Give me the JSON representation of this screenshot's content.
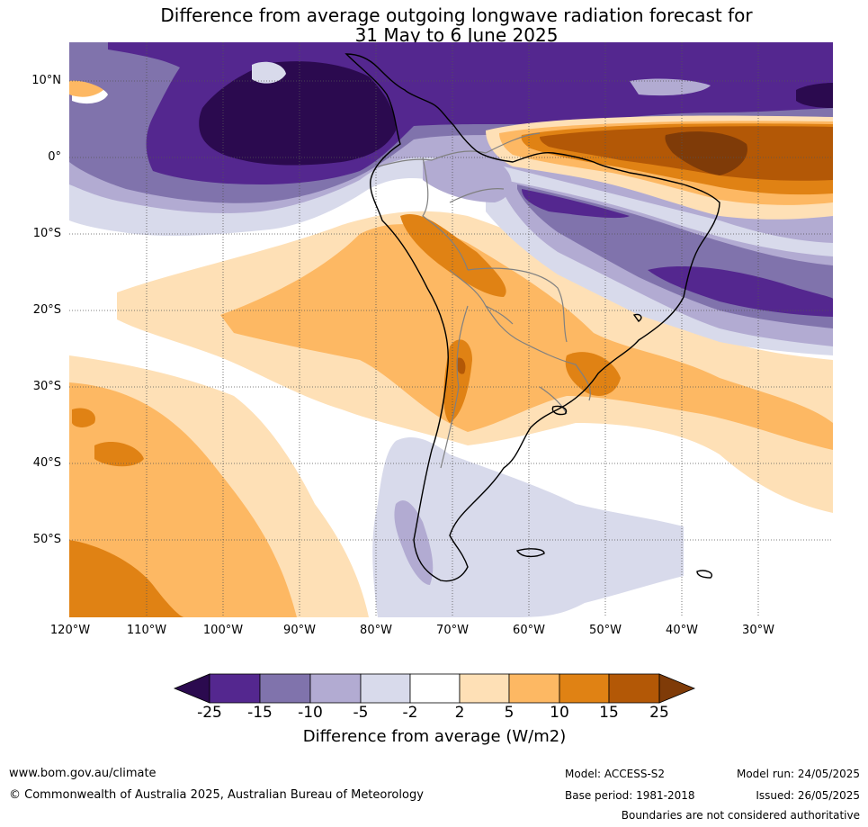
{
  "title_line1": "Difference from average outgoing longwave radiation forecast for",
  "title_line2": "31 May to 6 June 2025",
  "lat_labels": [
    "10°N",
    "0°",
    "10°S",
    "20°S",
    "30°S",
    "40°S",
    "50°S"
  ],
  "lon_labels": [
    "120°W",
    "110°W",
    "100°W",
    "90°W",
    "80°W",
    "70°W",
    "60°W",
    "50°W",
    "40°W",
    "30°W"
  ],
  "colorbar": {
    "title": "Difference from average (W/m2)",
    "ticks": [
      "-25",
      "-15",
      "-10",
      "-5",
      "-2",
      "2",
      "5",
      "10",
      "15",
      "25"
    ],
    "colors": [
      "#2b0a4f",
      "#54278f",
      "#8073ac",
      "#b2abd2",
      "#d8daeb",
      "#ffffff",
      "#fee0b6",
      "#fdb863",
      "#e08214",
      "#b35806",
      "#7f3b08"
    ]
  },
  "footer": {
    "website": "www.bom.gov.au/climate",
    "copyright": "© Commonwealth of Australia 2025, Australian Bureau of Meteorology",
    "model": "Model: ACCESS-S2",
    "base_period": "Base period: 1981-2018",
    "model_run": "Model run: 24/05/2025",
    "issued": "Issued: 26/05/2025",
    "disclaimer": "Boundaries are not considered authoritative"
  }
}
